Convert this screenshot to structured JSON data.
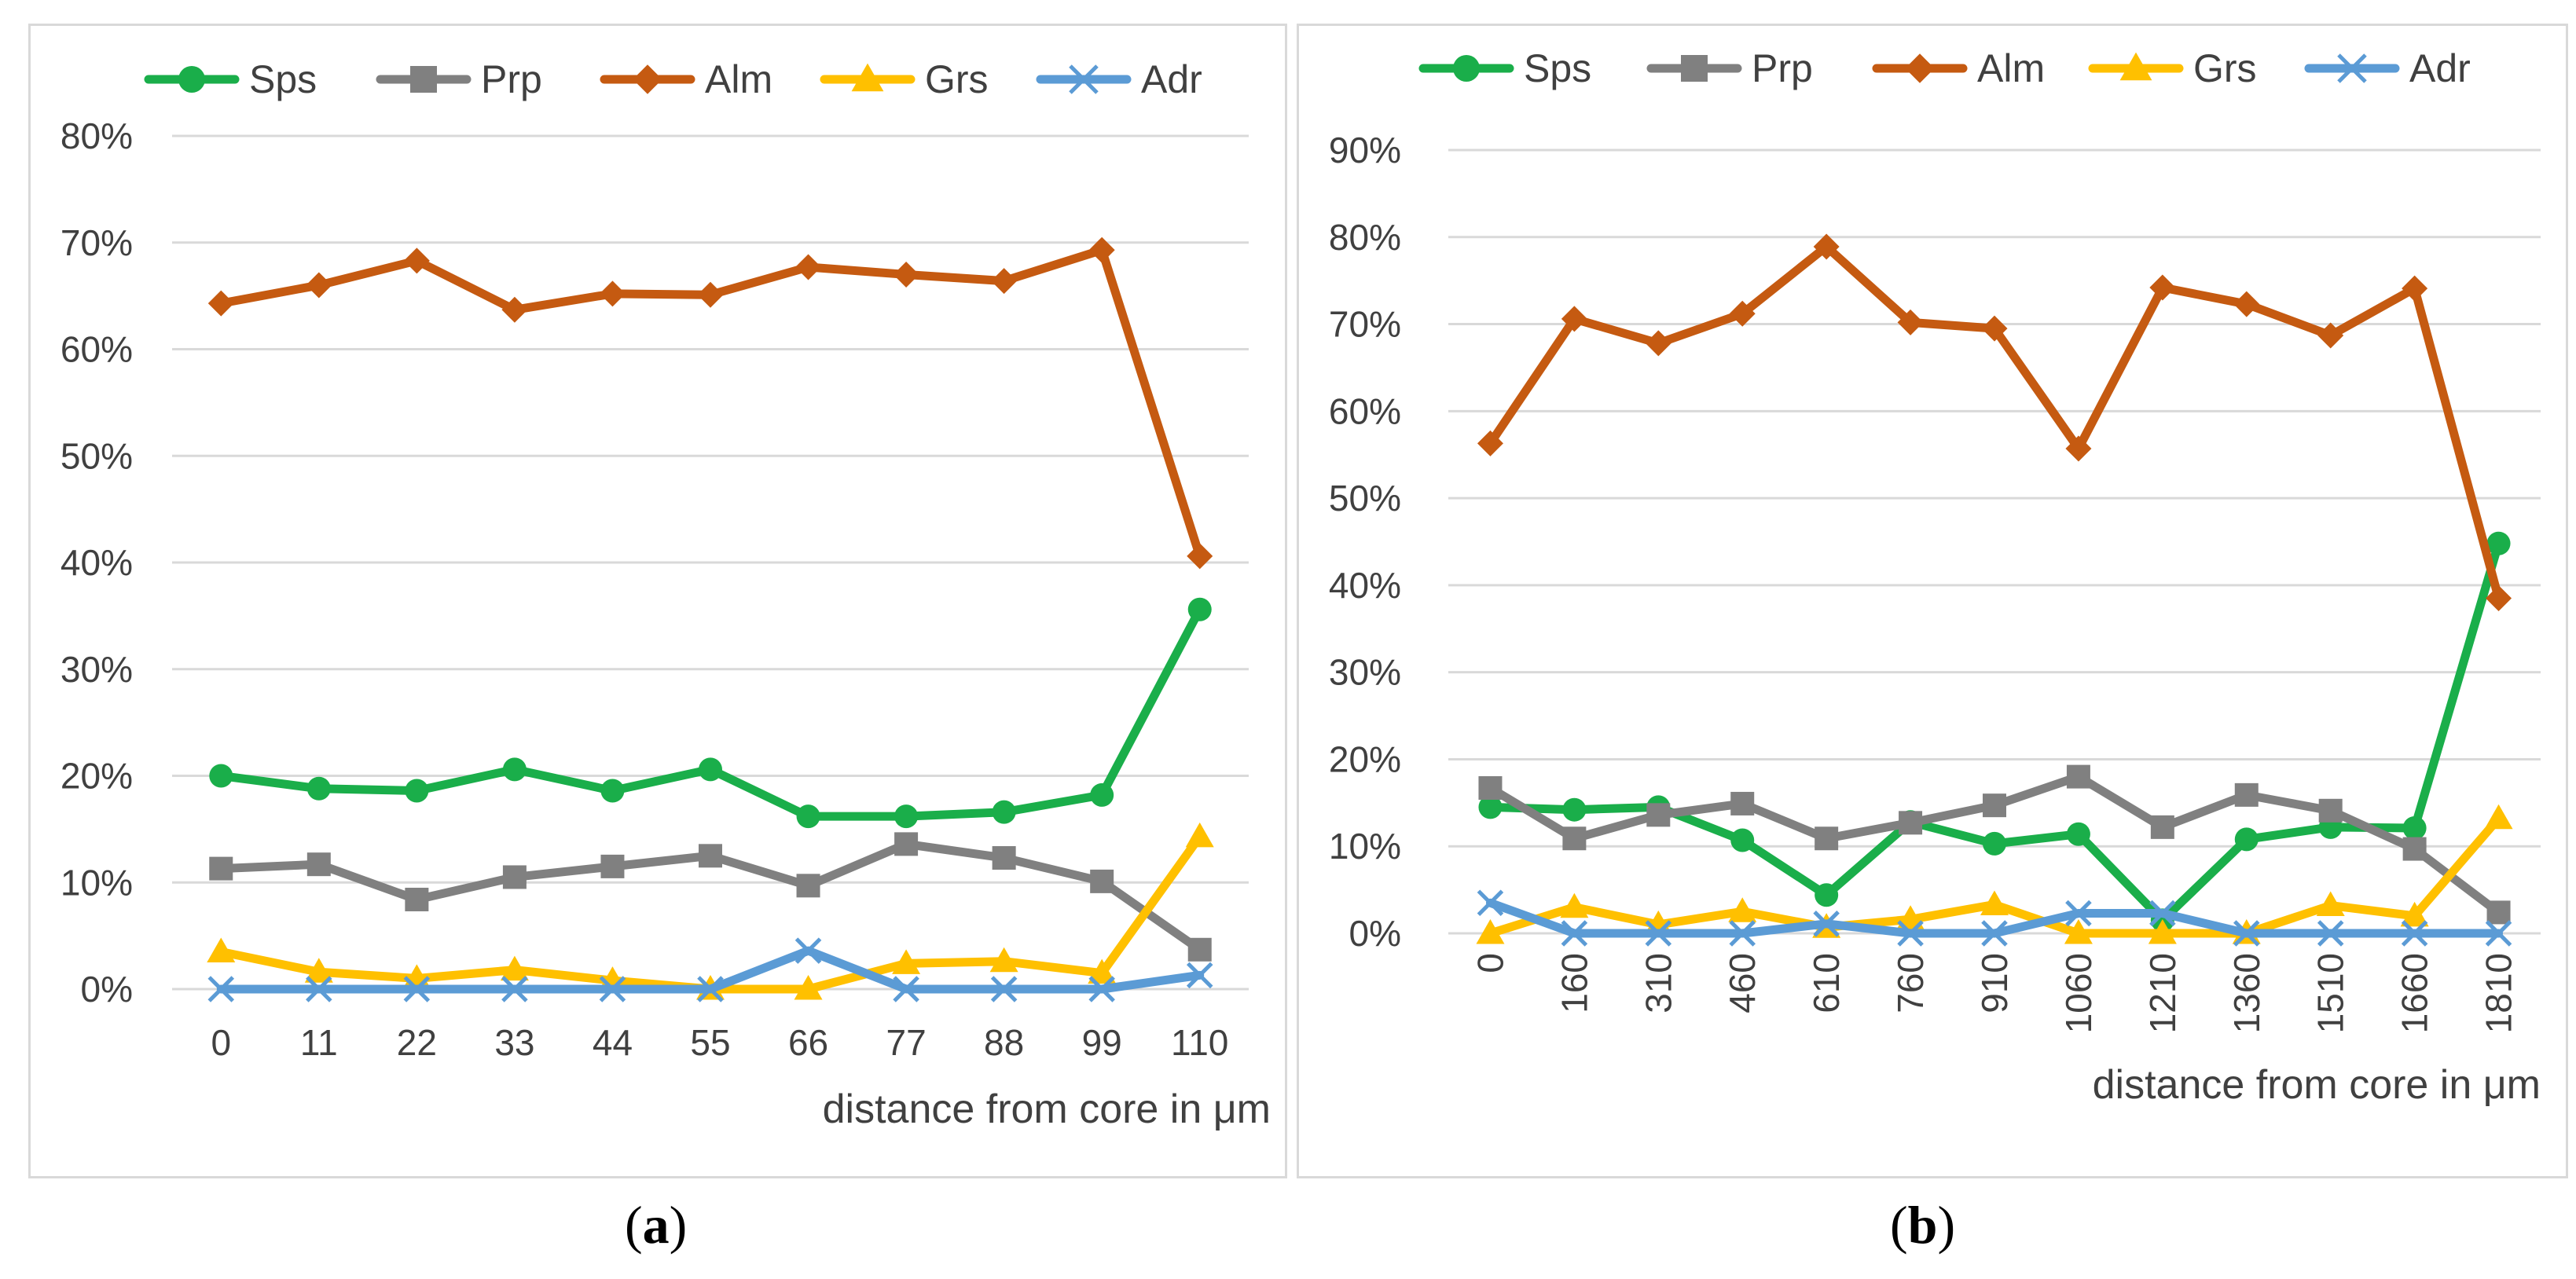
{
  "chart_data": [
    {
      "id": "a",
      "type": "line",
      "caption_prefix": "(",
      "caption_letter": "a",
      "caption_suffix": ")",
      "xlabel": "distance from core in μm",
      "ylabel": "",
      "ylim": [
        0,
        0.8
      ],
      "yticks": [
        "0%",
        "10%",
        "20%",
        "30%",
        "40%",
        "50%",
        "60%",
        "70%",
        "80%"
      ],
      "grid": true,
      "legend_position": "top",
      "categories": [
        "0",
        "11",
        "22",
        "33",
        "44",
        "55",
        "66",
        "77",
        "88",
        "99",
        "110"
      ],
      "series": [
        {
          "name": "Sps",
          "color": "#1aae4a",
          "marker": "circle",
          "values": [
            0.2,
            0.188,
            0.186,
            0.206,
            0.186,
            0.206,
            0.162,
            0.162,
            0.166,
            0.182,
            0.356
          ]
        },
        {
          "name": "Prp",
          "color": "#808080",
          "marker": "square",
          "values": [
            0.113,
            0.117,
            0.084,
            0.105,
            0.115,
            0.125,
            0.097,
            0.136,
            0.123,
            0.101,
            0.037
          ]
        },
        {
          "name": "Alm",
          "color": "#c55a11",
          "marker": "diamond",
          "values": [
            0.643,
            0.66,
            0.683,
            0.637,
            0.652,
            0.651,
            0.677,
            0.67,
            0.664,
            0.693,
            0.406
          ]
        },
        {
          "name": "Grs",
          "color": "#ffc000",
          "marker": "triangle",
          "values": [
            0.035,
            0.016,
            0.01,
            0.018,
            0.008,
            0.0,
            0.0,
            0.024,
            0.026,
            0.015,
            0.143
          ]
        },
        {
          "name": "Adr",
          "color": "#5b9bd5",
          "marker": "x",
          "values": [
            0.0,
            0.0,
            0.0,
            0.0,
            0.0,
            0.0,
            0.036,
            0.0,
            0.0,
            0.0,
            0.013
          ]
        }
      ]
    },
    {
      "id": "b",
      "type": "line",
      "caption_prefix": "(",
      "caption_letter": "b",
      "caption_suffix": ")",
      "xlabel": "distance from core in μm",
      "ylabel": "",
      "ylim": [
        0,
        0.9
      ],
      "yticks": [
        "0%",
        "10%",
        "20%",
        "30%",
        "40%",
        "50%",
        "60%",
        "70%",
        "80%",
        "90%"
      ],
      "grid": true,
      "legend_position": "top",
      "categories": [
        "0",
        "160",
        "310",
        "460",
        "610",
        "760",
        "910",
        "1060",
        "1210",
        "1360",
        "1510",
        "1660",
        "1810"
      ],
      "series": [
        {
          "name": "Sps",
          "color": "#1aae4a",
          "marker": "circle",
          "values": [
            0.145,
            0.142,
            0.145,
            0.107,
            0.044,
            0.128,
            0.103,
            0.114,
            0.015,
            0.108,
            0.122,
            0.121,
            0.448
          ]
        },
        {
          "name": "Prp",
          "color": "#808080",
          "marker": "square",
          "values": [
            0.167,
            0.109,
            0.136,
            0.149,
            0.109,
            0.127,
            0.147,
            0.18,
            0.122,
            0.159,
            0.141,
            0.097,
            0.024
          ]
        },
        {
          "name": "Alm",
          "color": "#c55a11",
          "marker": "diamond",
          "values": [
            0.563,
            0.706,
            0.678,
            0.712,
            0.789,
            0.702,
            0.695,
            0.557,
            0.742,
            0.723,
            0.687,
            0.741,
            0.385
          ]
        },
        {
          "name": "Grs",
          "color": "#ffc000",
          "marker": "triangle",
          "values": [
            0.0,
            0.03,
            0.01,
            0.025,
            0.007,
            0.016,
            0.033,
            0.0,
            0.0,
            0.0,
            0.032,
            0.02,
            0.132
          ]
        },
        {
          "name": "Adr",
          "color": "#5b9bd5",
          "marker": "x",
          "values": [
            0.035,
            0.0,
            0.0,
            0.0,
            0.011,
            0.0,
            0.0,
            0.023,
            0.023,
            0.0,
            0.0,
            0.0,
            0.0
          ]
        }
      ]
    }
  ]
}
